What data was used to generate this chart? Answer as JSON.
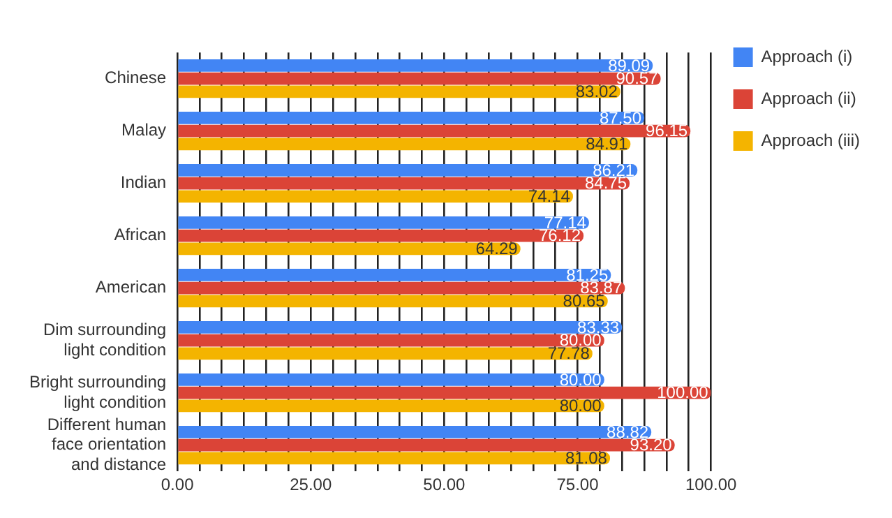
{
  "chart_data": {
    "type": "bar",
    "orientation": "horizontal",
    "categories": [
      "Chinese",
      "Malay",
      "Indian",
      "African",
      "American",
      "Dim surrounding light condition",
      "Bright surrounding light condition",
      "Different human face orientation and distance"
    ],
    "series": [
      {
        "name": "Approach (i)",
        "color": "#4285f4",
        "values": [
          89.09,
          87.5,
          86.21,
          77.14,
          81.25,
          83.33,
          80,
          88.82
        ],
        "value_labels": [
          "89.09",
          "87.50",
          "86.21",
          "77.14",
          "81.25",
          "83.33",
          "80.00",
          "88.82"
        ]
      },
      {
        "name": "Approach (ii)",
        "color": "#db4437",
        "values": [
          90.57,
          96.15,
          84.75,
          76.12,
          83.87,
          80,
          100,
          93.2
        ],
        "value_labels": [
          "90.57",
          "96.15",
          "84.75",
          "76.12",
          "83.87",
          "80.00",
          "100.00",
          "93.20"
        ]
      },
      {
        "name": "Approach (iii)",
        "color": "#f4b400",
        "values": [
          83.02,
          84.91,
          74.14,
          64.29,
          80.65,
          77.78,
          80,
          81.08
        ],
        "value_labels": [
          "83.02",
          "84.91",
          "74.14",
          "64.29",
          "80.65",
          "77.78",
          "80.00",
          "81.08"
        ]
      }
    ],
    "xlim": [
      0,
      100
    ],
    "xticks": [
      {
        "value": 0,
        "label": "0.00"
      },
      {
        "value": 4.17,
        "label": null
      },
      {
        "value": 8.33,
        "label": null
      },
      {
        "value": 12.5,
        "label": null
      },
      {
        "value": 16.67,
        "label": null
      },
      {
        "value": 20.83,
        "label": null
      },
      {
        "value": 25,
        "label": "25.00"
      },
      {
        "value": 29.17,
        "label": null
      },
      {
        "value": 33.33,
        "label": null
      },
      {
        "value": 37.5,
        "label": null
      },
      {
        "value": 41.67,
        "label": null
      },
      {
        "value": 45.83,
        "label": null
      },
      {
        "value": 50,
        "label": "50.00"
      },
      {
        "value": 54.17,
        "label": null
      },
      {
        "value": 58.33,
        "label": null
      },
      {
        "value": 62.5,
        "label": null
      },
      {
        "value": 66.67,
        "label": null
      },
      {
        "value": 70.83,
        "label": null
      },
      {
        "value": 75,
        "label": "75.00"
      },
      {
        "value": 79.17,
        "label": null
      },
      {
        "value": 83.33,
        "label": null
      },
      {
        "value": 87.5,
        "label": null
      },
      {
        "value": 91.67,
        "label": null
      },
      {
        "value": 95.83,
        "label": null
      },
      {
        "value": 100,
        "label": "100.00"
      }
    ],
    "grid": "x",
    "legend": "top right"
  }
}
